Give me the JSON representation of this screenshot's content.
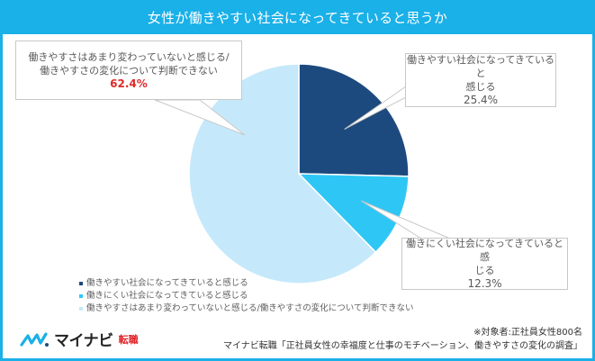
{
  "title": "女性が働きやすい社会になってきていると思うか",
  "chart_data": {
    "type": "pie",
    "title": "女性が働きやすい社会になってきていると思うか",
    "categories": [
      "働きやすい社会になってきていると感じる",
      "働きにくい社会になってきていると感じる",
      "働きやすさはあまり変わっていないと感じる/働きやすさの変化について判断できない"
    ],
    "values": [
      25.4,
      12.3,
      62.4
    ],
    "colors": [
      "#1d4a7e",
      "#2ec7f5",
      "#c5e9fb"
    ],
    "start_angle_deg": 0,
    "direction": "clockwise",
    "legend_position": "bottom-left",
    "unit": "%"
  },
  "callouts": [
    {
      "label_line1": "働きやすい社会になってきていると",
      "label_line2": "感じる",
      "value": "25.4%"
    },
    {
      "label_line1": "働きにくい社会になってきていると感",
      "label_line2": "じる",
      "value": "12.3%"
    },
    {
      "label_line1": "働きやすさはあまり変わっていないと感じる/",
      "label_line2": "働きやすさの変化について判断できない",
      "value": "62.4%"
    }
  ],
  "legend": [
    {
      "label": "働きやすい社会になってきていると感じる",
      "color": "#1d4a7e"
    },
    {
      "label": "働きにくい社会になってきていると感じる",
      "color": "#2ec7f5"
    },
    {
      "label": "働きやすさはあまり変わっていないと感じる/働きやすさの変化について判断できない",
      "color": "#c5e9fb"
    }
  ],
  "logo": {
    "main": "マイナビ",
    "sub": "転職"
  },
  "footnote": {
    "line1": "※対象者:正社員女性800名",
    "line2": "マイナビ転職「正社員女性の幸福度と仕事のモチベーション、働きやすさの変化の調査」"
  },
  "colors": {
    "accent": "#1ab0e8",
    "highlight_red": "#e02a2a"
  }
}
